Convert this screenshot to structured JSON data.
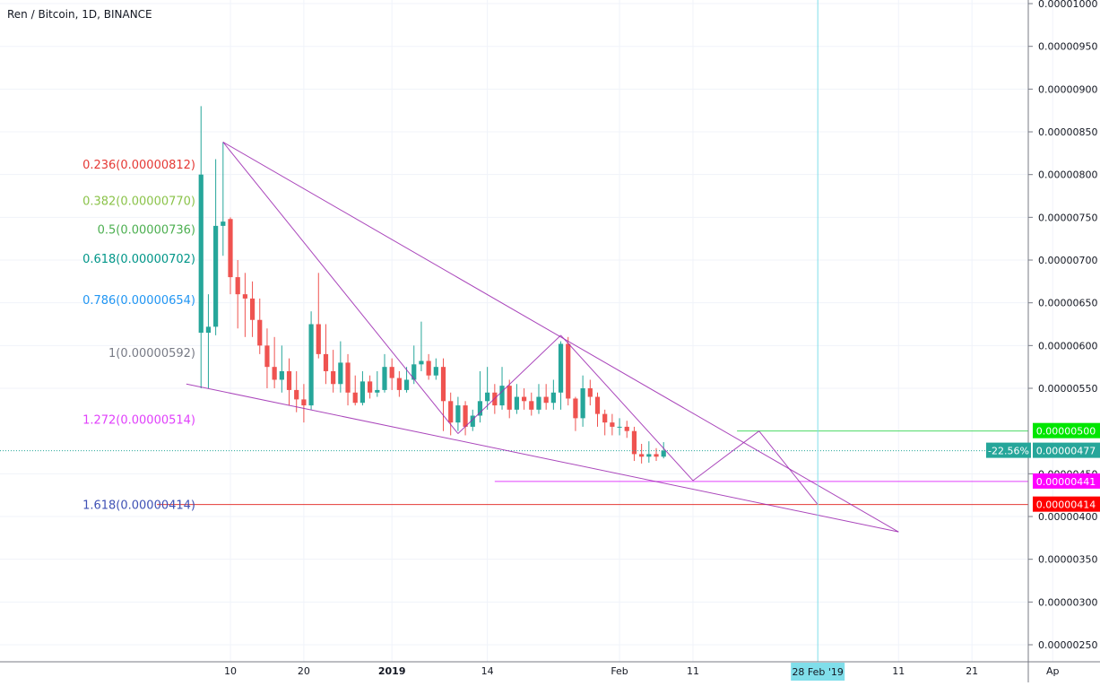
{
  "chart_data": {
    "type": "candlestick",
    "title": "Ren / Bitcoin, 1D, BINANCE",
    "y_range": [
      2.2e-06,
      1e-06
    ],
    "ylim": [
      2.2e-07,
      1.01e-06
    ],
    "y_ticks": [
      "0.00001000",
      "0.00000950",
      "0.00000900",
      "0.00000850",
      "0.00000800",
      "0.00000750",
      "0.00000700",
      "0.00000650",
      "0.00000600",
      "0.00000550",
      "0.00000450",
      "0.00000400",
      "0.00000350",
      "0.00000300",
      "0.00000250"
    ],
    "y_tick_values": [
      1000,
      950,
      900,
      850,
      800,
      750,
      700,
      650,
      600,
      550,
      450,
      400,
      350,
      300,
      250
    ],
    "x_ticks": [
      {
        "label": "10",
        "day": 10
      },
      {
        "label": "20",
        "day": 20
      },
      {
        "label": "2019",
        "day": 32
      },
      {
        "label": "14",
        "day": 45
      },
      {
        "label": "Feb",
        "day": 63
      },
      {
        "label": "11",
        "day": 73
      },
      {
        "label": "11",
        "day": 101
      },
      {
        "label": "21",
        "day": 111
      },
      {
        "label": "Ap",
        "day": 122
      }
    ],
    "x_crosshair_label": "28 Feb '19",
    "x_crosshair_day": 90,
    "candles": [
      [
        6,
        615,
        800,
        880,
        550
      ],
      [
        7,
        615,
        622,
        660,
        550
      ],
      [
        8,
        622,
        740,
        818,
        612
      ],
      [
        9,
        740,
        745,
        838,
        705
      ],
      [
        10,
        748,
        680,
        750,
        660
      ],
      [
        11,
        680,
        660,
        700,
        620
      ],
      [
        12,
        660,
        655,
        685,
        610
      ],
      [
        13,
        655,
        630,
        675,
        610
      ],
      [
        14,
        630,
        600,
        655,
        590
      ],
      [
        15,
        600,
        575,
        620,
        550
      ],
      [
        16,
        575,
        560,
        610,
        550
      ],
      [
        17,
        560,
        570,
        600,
        545
      ],
      [
        18,
        570,
        548,
        585,
        530
      ],
      [
        19,
        548,
        537,
        570,
        522
      ],
      [
        20,
        537,
        530,
        555,
        510
      ],
      [
        21,
        530,
        625,
        640,
        525
      ],
      [
        22,
        625,
        590,
        685,
        585
      ],
      [
        23,
        590,
        570,
        625,
        555
      ],
      [
        24,
        570,
        555,
        595,
        545
      ],
      [
        25,
        555,
        580,
        605,
        545
      ],
      [
        26,
        580,
        545,
        590,
        530
      ],
      [
        27,
        545,
        533,
        565,
        530
      ],
      [
        28,
        533,
        558,
        570,
        530
      ],
      [
        29,
        558,
        545,
        565,
        538
      ],
      [
        30,
        545,
        548,
        570,
        540
      ],
      [
        31,
        548,
        575,
        590,
        545
      ],
      [
        32,
        575,
        562,
        585,
        548
      ],
      [
        33,
        562,
        548,
        570,
        540
      ],
      [
        34,
        548,
        560,
        575,
        545
      ],
      [
        35,
        560,
        578,
        600,
        555
      ],
      [
        36,
        578,
        582,
        628,
        570
      ],
      [
        37,
        582,
        565,
        590,
        560
      ],
      [
        38,
        565,
        575,
        585,
        560
      ],
      [
        39,
        575,
        535,
        585,
        500
      ],
      [
        40,
        535,
        510,
        545,
        495
      ],
      [
        41,
        510,
        530,
        540,
        500
      ],
      [
        42,
        530,
        505,
        535,
        495
      ],
      [
        43,
        505,
        518,
        525,
        500
      ],
      [
        44,
        518,
        535,
        570,
        510
      ],
      [
        45,
        535,
        545,
        575,
        525
      ],
      [
        46,
        545,
        530,
        555,
        520
      ],
      [
        47,
        530,
        553,
        575,
        525
      ],
      [
        48,
        553,
        525,
        560,
        515
      ],
      [
        49,
        525,
        540,
        555,
        520
      ],
      [
        50,
        540,
        535,
        550,
        525
      ],
      [
        51,
        535,
        525,
        545,
        518
      ],
      [
        52,
        525,
        540,
        555,
        520
      ],
      [
        53,
        540,
        533,
        555,
        525
      ],
      [
        54,
        533,
        545,
        560,
        525
      ],
      [
        55,
        545,
        602,
        605,
        525
      ],
      [
        56,
        602,
        538,
        610,
        530
      ],
      [
        57,
        538,
        515,
        540,
        500
      ],
      [
        58,
        515,
        550,
        565,
        505
      ],
      [
        59,
        550,
        540,
        560,
        530
      ],
      [
        60,
        540,
        520,
        545,
        505
      ],
      [
        61,
        520,
        510,
        525,
        495
      ],
      [
        62,
        510,
        505,
        520,
        495
      ],
      [
        63,
        505,
        505,
        515,
        495
      ],
      [
        64,
        505,
        500,
        512,
        492
      ],
      [
        65,
        500,
        473,
        505,
        465
      ],
      [
        66,
        473,
        470,
        485,
        462
      ],
      [
        67,
        470,
        473,
        488,
        463
      ],
      [
        68,
        473,
        470,
        480,
        465
      ],
      [
        69,
        470,
        477,
        487,
        468
      ]
    ],
    "colors": {
      "up": "#26a69a",
      "down": "#ef5350"
    },
    "fib_levels": [
      {
        "label": "0.236(0.00000812)",
        "value": 812,
        "color": "#e53935"
      },
      {
        "label": "0.382(0.00000770)",
        "value": 770,
        "color": "#8bc34a"
      },
      {
        "label": "0.5(0.00000736)",
        "value": 736,
        "color": "#4caf50"
      },
      {
        "label": "0.618(0.00000702)",
        "value": 702,
        "color": "#009688"
      },
      {
        "label": "0.786(0.00000654)",
        "value": 654,
        "color": "#2196f3"
      },
      {
        "label": "1(0.00000592)",
        "value": 592,
        "color": "#787b86"
      },
      {
        "label": "1.272(0.00000514)",
        "value": 514,
        "color": "#e040fb"
      },
      {
        "label": "1.618(0.00000414)",
        "value": 414,
        "color": "#3f51b5"
      }
    ],
    "trendlines": [
      {
        "from": [
          9,
          838
        ],
        "to": [
          101,
          382
        ]
      },
      {
        "from": [
          4,
          555
        ],
        "to": [
          101,
          382
        ]
      },
      {
        "from": [
          9,
          838
        ],
        "to": [
          41,
          497
        ]
      },
      {
        "from": [
          41,
          497
        ],
        "to": [
          55,
          612
        ]
      },
      {
        "from": [
          55,
          612
        ],
        "to": [
          73,
          442
        ]
      },
      {
        "from": [
          73,
          442
        ],
        "to": [
          82,
          500
        ]
      },
      {
        "from": [
          82,
          500
        ],
        "to": [
          90,
          414
        ]
      }
    ],
    "horizontal_lines": [
      {
        "value": 500,
        "from_day": 79,
        "color": "#4cd964",
        "label": "0.00000500",
        "bg": "#00e600",
        "fg": "#000000"
      },
      {
        "value": 441,
        "from_day": 46,
        "color": "#e040fb",
        "label": "0.00000441",
        "bg": "#ff00ff",
        "fg": "#ffffff"
      },
      {
        "value": 414,
        "from_day": 0,
        "color": "#e53935",
        "label": "0.00000414",
        "bg": "#ff0000",
        "fg": "#ffffff"
      }
    ],
    "current_price": {
      "value": 477,
      "label": "0.00000477",
      "change": "-22.56%",
      "color": "#26a69a"
    }
  }
}
